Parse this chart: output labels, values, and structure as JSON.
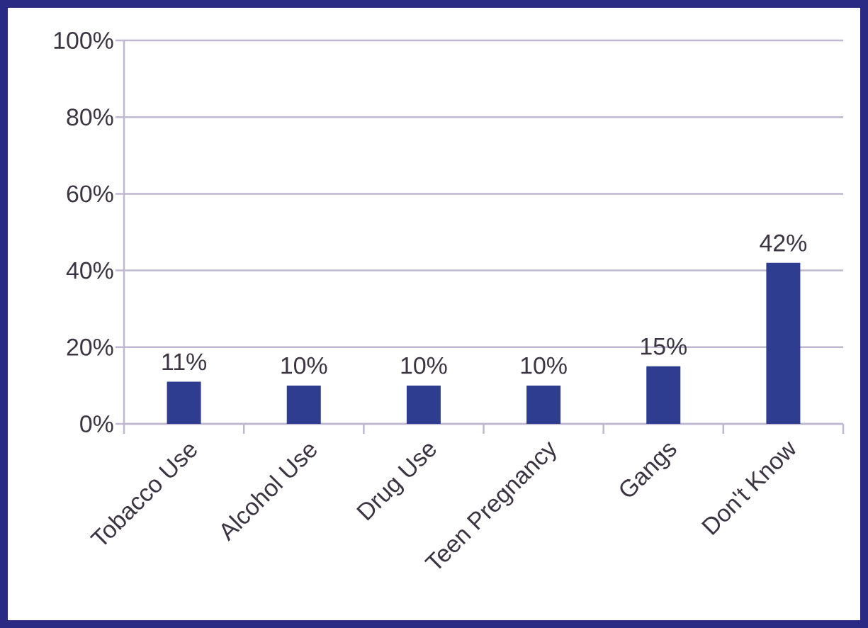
{
  "chart_data": {
    "type": "bar",
    "categories": [
      "Tobacco Use",
      "Alcohol Use",
      "Drug Use",
      "Teen Pregnancy",
      "Gangs",
      "Don't Know"
    ],
    "values": [
      11,
      10,
      10,
      10,
      15,
      42
    ],
    "value_labels": [
      "11%",
      "10%",
      "10%",
      "10%",
      "15%",
      "42%"
    ],
    "color": "#2e3d8f",
    "ylim": [
      0,
      100
    ],
    "yticks": [
      {
        "value": 0,
        "label": "0%"
      },
      {
        "value": 20,
        "label": "20%"
      },
      {
        "value": 40,
        "label": "40%"
      },
      {
        "value": 60,
        "label": "60%"
      },
      {
        "value": 80,
        "label": "80%"
      },
      {
        "value": 100,
        "label": "100%"
      }
    ],
    "grid": "y"
  }
}
